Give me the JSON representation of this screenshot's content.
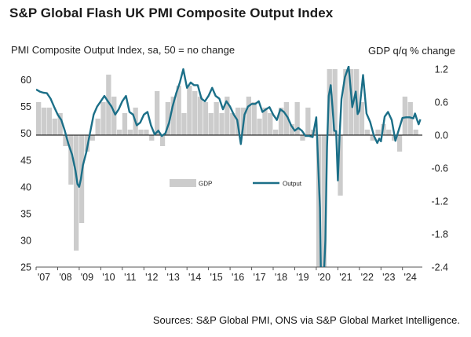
{
  "title": "S&P Global Flash UK PMI Composite Output Index",
  "left_axis_label": "PMI Composite  Output Index, sa, 50 = no change",
  "right_axis_label": "GDP q/q % change",
  "source": "Sources: S&P Global PMI, ONS via S&P Global Market Intelligence.",
  "colors": {
    "gdp_bars": "#cccccc",
    "output_line": "#1b6f88",
    "baseline": "#000000"
  },
  "chart_data": {
    "type": "bar+line",
    "y_left": {
      "min": 25,
      "max": 62,
      "ticks": [
        "25",
        "30",
        "35",
        "40",
        "45",
        "50",
        "55",
        "60"
      ]
    },
    "y_right": {
      "min": -2.4,
      "max": 1.2,
      "ticks": [
        "-2.4",
        "-1.8",
        "-1.2",
        "-0.6",
        "0.0",
        "0.6",
        "1.2"
      ]
    },
    "x_ticks": [
      "'07",
      "'08",
      "'09",
      "'10",
      "'11",
      "'12",
      "'13",
      "'14",
      "'15",
      "'16",
      "'17",
      "'18",
      "'19",
      "'20",
      "'21",
      "'22",
      "'23",
      "'24"
    ],
    "legend": [
      "GDP",
      "Output"
    ],
    "gdp_quarterly": [
      {
        "q": "2007Q1",
        "v": 0.6
      },
      {
        "q": "2007Q2",
        "v": 0.5
      },
      {
        "q": "2007Q3",
        "v": 0.5
      },
      {
        "q": "2007Q4",
        "v": 0.3
      },
      {
        "q": "2008Q1",
        "v": 0.4
      },
      {
        "q": "2008Q2",
        "v": -0.2
      },
      {
        "q": "2008Q3",
        "v": -0.9
      },
      {
        "q": "2008Q4",
        "v": -2.1
      },
      {
        "q": "2009Q1",
        "v": -1.6
      },
      {
        "q": "2009Q2",
        "v": -0.3
      },
      {
        "q": "2009Q3",
        "v": -0.1
      },
      {
        "q": "2009Q4",
        "v": 0.3
      },
      {
        "q": "2010Q1",
        "v": 0.6
      },
      {
        "q": "2010Q2",
        "v": 1.1
      },
      {
        "q": "2010Q3",
        "v": 0.7
      },
      {
        "q": "2010Q4",
        "v": 0.1
      },
      {
        "q": "2011Q1",
        "v": 0.4
      },
      {
        "q": "2011Q2",
        "v": 0.1
      },
      {
        "q": "2011Q3",
        "v": 0.5
      },
      {
        "q": "2011Q4",
        "v": 0.1
      },
      {
        "q": "2012Q1",
        "v": 0.1
      },
      {
        "q": "2012Q2",
        "v": -0.1
      },
      {
        "q": "2012Q3",
        "v": 0.8
      },
      {
        "q": "2012Q4",
        "v": -0.2
      },
      {
        "q": "2013Q1",
        "v": 0.6
      },
      {
        "q": "2013Q2",
        "v": 0.7
      },
      {
        "q": "2013Q3",
        "v": 0.9
      },
      {
        "q": "2013Q4",
        "v": 0.4
      },
      {
        "q": "2014Q1",
        "v": 0.9
      },
      {
        "q": "2014Q2",
        "v": 0.8
      },
      {
        "q": "2014Q3",
        "v": 0.7
      },
      {
        "q": "2014Q4",
        "v": 0.6
      },
      {
        "q": "2015Q1",
        "v": 0.4
      },
      {
        "q": "2015Q2",
        "v": 0.6
      },
      {
        "q": "2015Q3",
        "v": 0.4
      },
      {
        "q": "2015Q4",
        "v": 0.7
      },
      {
        "q": "2016Q1",
        "v": 0.4
      },
      {
        "q": "2016Q2",
        "v": 0.5
      },
      {
        "q": "2016Q3",
        "v": 0.5
      },
      {
        "q": "2016Q4",
        "v": 0.7
      },
      {
        "q": "2017Q1",
        "v": 0.6
      },
      {
        "q": "2017Q2",
        "v": 0.3
      },
      {
        "q": "2017Q3",
        "v": 0.5
      },
      {
        "q": "2017Q4",
        "v": 0.4
      },
      {
        "q": "2018Q1",
        "v": 0.1
      },
      {
        "q": "2018Q2",
        "v": 0.5
      },
      {
        "q": "2018Q3",
        "v": 0.6
      },
      {
        "q": "2018Q4",
        "v": 0.2
      },
      {
        "q": "2019Q1",
        "v": 0.6
      },
      {
        "q": "2019Q2",
        "v": -0.1
      },
      {
        "q": "2019Q3",
        "v": 0.5
      },
      {
        "q": "2019Q4",
        "v": 0.1
      },
      {
        "q": "2020Q1",
        "v": -2.4
      },
      {
        "q": "2020Q2",
        "v": -2.4
      },
      {
        "q": "2020Q3",
        "v": 1.2
      },
      {
        "q": "2020Q4",
        "v": 1.2
      },
      {
        "q": "2021Q1",
        "v": -1.1
      },
      {
        "q": "2021Q2",
        "v": 1.2
      },
      {
        "q": "2021Q3",
        "v": 1.2
      },
      {
        "q": "2021Q4",
        "v": 1.2
      },
      {
        "q": "2022Q1",
        "v": 0.6
      },
      {
        "q": "2022Q2",
        "v": 0.1
      },
      {
        "q": "2022Q3",
        "v": -0.1
      },
      {
        "q": "2022Q4",
        "v": 0.1
      },
      {
        "q": "2023Q1",
        "v": 0.2
      },
      {
        "q": "2023Q2",
        "v": 0.1
      },
      {
        "q": "2023Q3",
        "v": -0.1
      },
      {
        "q": "2023Q4",
        "v": -0.3
      },
      {
        "q": "2024Q1",
        "v": 0.7
      },
      {
        "q": "2024Q2",
        "v": 0.6
      },
      {
        "q": "2024Q3",
        "v": 0.1
      }
    ],
    "output_pmi": [
      [
        2007.0,
        58.2
      ],
      [
        2007.17,
        57.8
      ],
      [
        2007.33,
        57.6
      ],
      [
        2007.5,
        57.5
      ],
      [
        2007.67,
        56.5
      ],
      [
        2007.83,
        55.0
      ],
      [
        2008.0,
        53.5
      ],
      [
        2008.17,
        52.5
      ],
      [
        2008.33,
        50.5
      ],
      [
        2008.5,
        48.0
      ],
      [
        2008.67,
        46.0
      ],
      [
        2008.83,
        43.0
      ],
      [
        2008.92,
        40.5
      ],
      [
        2009.0,
        40.0
      ],
      [
        2009.08,
        41.5
      ],
      [
        2009.17,
        44.0
      ],
      [
        2009.33,
        46.5
      ],
      [
        2009.5,
        50.0
      ],
      [
        2009.67,
        53.5
      ],
      [
        2009.83,
        55.0
      ],
      [
        2010.0,
        56.0
      ],
      [
        2010.17,
        57.0
      ],
      [
        2010.33,
        56.0
      ],
      [
        2010.5,
        55.0
      ],
      [
        2010.67,
        53.5
      ],
      [
        2010.83,
        54.5
      ],
      [
        2011.0,
        56.0
      ],
      [
        2011.17,
        57.0
      ],
      [
        2011.33,
        54.0
      ],
      [
        2011.5,
        53.5
      ],
      [
        2011.67,
        51.5
      ],
      [
        2011.83,
        52.0
      ],
      [
        2012.0,
        53.5
      ],
      [
        2012.17,
        54.0
      ],
      [
        2012.33,
        51.5
      ],
      [
        2012.5,
        49.8
      ],
      [
        2012.67,
        50.5
      ],
      [
        2012.83,
        49.5
      ],
      [
        2013.0,
        50.0
      ],
      [
        2013.17,
        52.0
      ],
      [
        2013.33,
        55.0
      ],
      [
        2013.5,
        57.5
      ],
      [
        2013.67,
        59.5
      ],
      [
        2013.83,
        62.0
      ],
      [
        2014.0,
        58.5
      ],
      [
        2014.17,
        59.5
      ],
      [
        2014.33,
        59.0
      ],
      [
        2014.5,
        59.0
      ],
      [
        2014.67,
        56.5
      ],
      [
        2014.83,
        56.0
      ],
      [
        2015.0,
        57.0
      ],
      [
        2015.17,
        58.5
      ],
      [
        2015.33,
        57.0
      ],
      [
        2015.5,
        56.5
      ],
      [
        2015.67,
        54.5
      ],
      [
        2015.83,
        56.0
      ],
      [
        2016.0,
        55.0
      ],
      [
        2016.17,
        53.5
      ],
      [
        2016.33,
        52.5
      ],
      [
        2016.5,
        48.0
      ],
      [
        2016.67,
        53.5
      ],
      [
        2016.83,
        55.0
      ],
      [
        2017.0,
        55.5
      ],
      [
        2017.17,
        55.5
      ],
      [
        2017.33,
        56.0
      ],
      [
        2017.5,
        54.0
      ],
      [
        2017.67,
        54.5
      ],
      [
        2017.83,
        54.9
      ],
      [
        2018.0,
        53.5
      ],
      [
        2018.17,
        52.5
      ],
      [
        2018.33,
        54.5
      ],
      [
        2018.5,
        54.0
      ],
      [
        2018.67,
        53.0
      ],
      [
        2018.83,
        51.5
      ],
      [
        2019.0,
        50.5
      ],
      [
        2019.17,
        51.0
      ],
      [
        2019.33,
        50.5
      ],
      [
        2019.5,
        49.5
      ],
      [
        2019.67,
        49.5
      ],
      [
        2019.83,
        49.3
      ],
      [
        2020.0,
        53.0
      ],
      [
        2020.17,
        36.0
      ],
      [
        2020.25,
        13.8
      ],
      [
        2020.42,
        30.0
      ],
      [
        2020.5,
        47.5
      ],
      [
        2020.58,
        57.0
      ],
      [
        2020.67,
        59.0
      ],
      [
        2020.75,
        55.0
      ],
      [
        2020.83,
        50.5
      ],
      [
        2020.92,
        50.4
      ],
      [
        2021.0,
        41.2
      ],
      [
        2021.08,
        49.6
      ],
      [
        2021.17,
        56.4
      ],
      [
        2021.33,
        60.5
      ],
      [
        2021.5,
        62.5
      ],
      [
        2021.58,
        59.0
      ],
      [
        2021.67,
        54.9
      ],
      [
        2021.83,
        57.8
      ],
      [
        2021.92,
        53.6
      ],
      [
        2022.0,
        54.2
      ],
      [
        2022.17,
        60.9
      ],
      [
        2022.33,
        53.7
      ],
      [
        2022.5,
        52.1
      ],
      [
        2022.67,
        49.6
      ],
      [
        2022.83,
        48.2
      ],
      [
        2022.92,
        49.0
      ],
      [
        2023.0,
        48.5
      ],
      [
        2023.17,
        53.1
      ],
      [
        2023.33,
        54.0
      ],
      [
        2023.5,
        52.5
      ],
      [
        2023.67,
        48.6
      ],
      [
        2023.83,
        50.7
      ],
      [
        2024.0,
        52.9
      ],
      [
        2024.17,
        53.0
      ],
      [
        2024.33,
        53.0
      ],
      [
        2024.5,
        52.8
      ],
      [
        2024.58,
        53.7
      ],
      [
        2024.67,
        52.6
      ],
      [
        2024.75,
        51.7
      ],
      [
        2024.83,
        52.6
      ]
    ]
  }
}
